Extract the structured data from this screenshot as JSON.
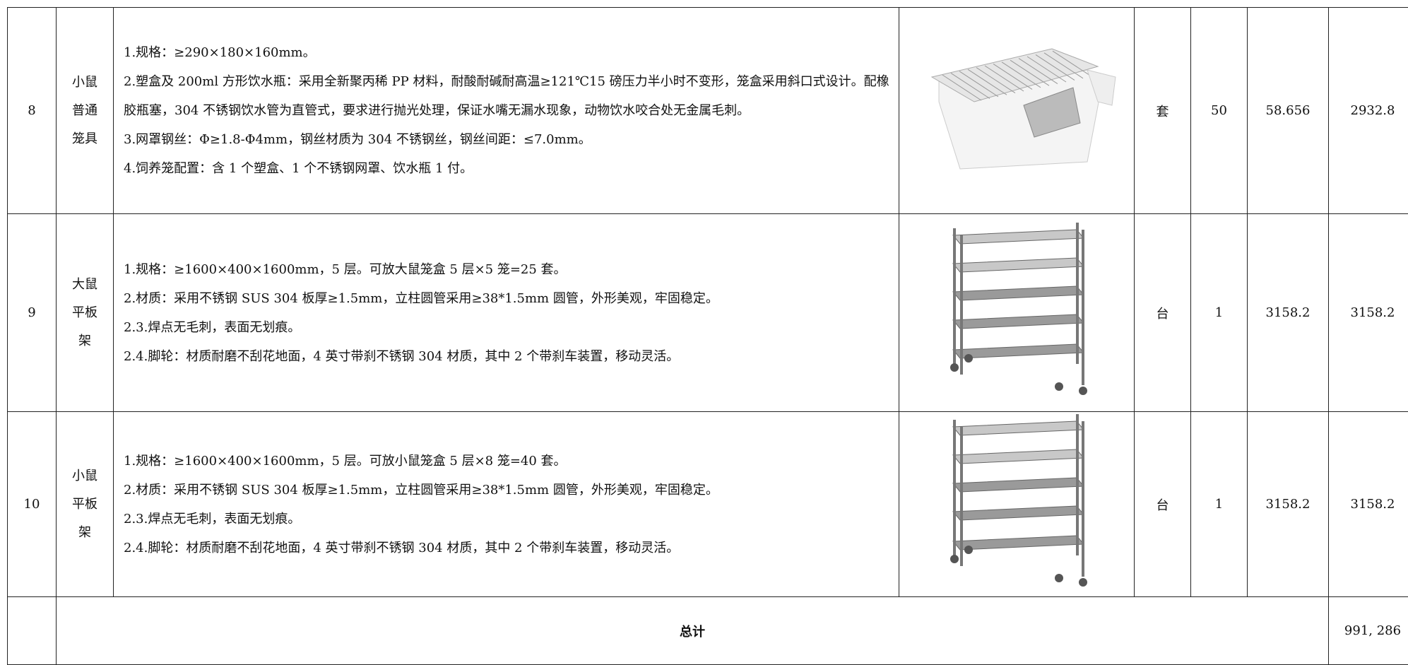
{
  "table": {
    "rows": [
      {
        "no": "8",
        "name": [
          "小鼠",
          "普通",
          "笼具"
        ],
        "desc": [
          "1.规格：≥290×180×160mm。",
          "2.塑盒及 200ml 方形饮水瓶：采用全新聚丙稀 PP 材料，耐酸耐碱耐高温≥121℃15 磅压力半小时不变形，笼盒采用斜口式设计。配橡胶瓶塞，304 不锈钢饮水管为直管式，要求进行抛光处理，保证水嘴无漏水现象，动物饮水咬合处无金属毛刺。",
          "3.网罩钢丝：Φ≥1.8-Φ4mm，钢丝材质为 304 不锈钢丝，钢丝间距：≤7.0mm。",
          "4.饲养笼配置：含 1 个塑盒、1 个不锈钢网罩、饮水瓶 1 付。"
        ],
        "unit": "套",
        "qty": "50",
        "price": "58.656",
        "amount": "2932.8"
      },
      {
        "no": "9",
        "name": [
          "大鼠",
          "平板",
          "架"
        ],
        "desc": [
          "1.规格：≥1600×400×1600mm，5 层。可放大鼠笼盒 5 层×5 笼=25 套。",
          "2.材质：采用不锈钢 SUS 304 板厚≥1.5mm，立柱圆管采用≥38*1.5mm 圆管，外形美观，牢固稳定。",
          "2.3.焊点无毛刺，表面无划痕。",
          "2.4.脚轮：材质耐磨不刮花地面，4 英寸带刹不锈钢 304 材质，其中 2 个带刹车装置，移动灵活。"
        ],
        "unit": "台",
        "qty": "1",
        "price": "3158.2",
        "amount": "3158.2"
      },
      {
        "no": "10",
        "name": [
          "小鼠",
          "平板",
          "架"
        ],
        "desc": [
          "1.规格：≥1600×400×1600mm，5 层。可放小鼠笼盒 5 层×8 笼=40 套。",
          "2.材质：采用不锈钢 SUS 304 板厚≥1.5mm，立柱圆管采用≥38*1.5mm 圆管，外形美观，牢固稳定。",
          "2.3.焊点无毛刺，表面无划痕。",
          "2.4.脚轮：材质耐磨不刮花地面，4 英寸带刹不锈钢 304 材质，其中 2 个带刹车装置，移动灵活。"
        ],
        "unit": "台",
        "qty": "1",
        "price": "3158.2",
        "amount": "3158.2"
      }
    ],
    "total": {
      "label": "总计",
      "amount": "991, 286"
    }
  }
}
